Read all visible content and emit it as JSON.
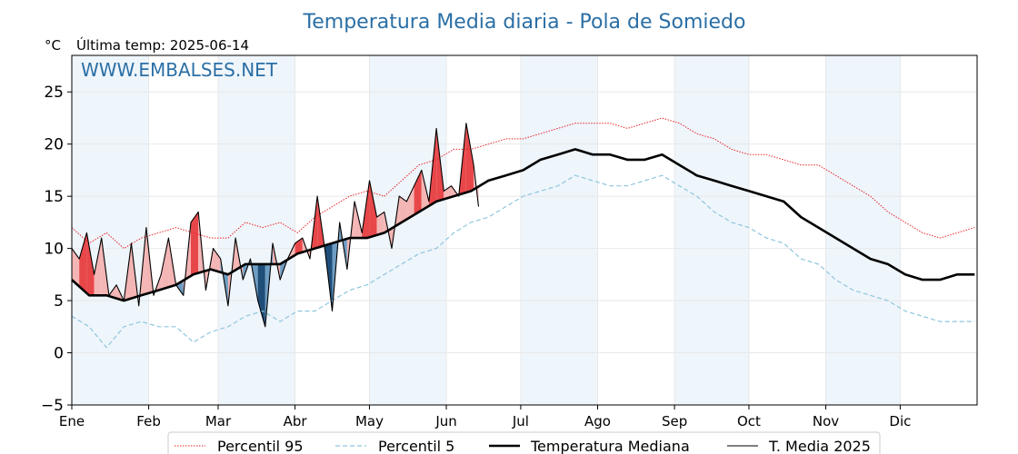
{
  "page": {
    "title": "Temperatura Media diaria - Pola de Somiedo",
    "unit": "°C",
    "last_update": "Última temp: 2025-06-14",
    "watermark": "WWW.EMBALSES.NET"
  },
  "colors": {
    "p95": "#e8262a",
    "p5": "#8fc6de",
    "median": "#000000",
    "current": "#000000",
    "above_fill": "#f4b5b5",
    "above_fill_strong": "#e8474a",
    "below_fill": "#6e9dc3",
    "below_fill_strong": "#1f4e79",
    "month_band": "#eef5fb",
    "title": "#2b6fa5"
  },
  "chart_data": {
    "type": "line",
    "title": "Temperatura Media diaria - Pola de Somiedo",
    "ylabel": "°C",
    "ylim": [
      -5,
      28.5
    ],
    "yticks": [
      -5,
      0,
      5,
      10,
      15,
      20,
      25
    ],
    "ytick_labels": [
      "−5",
      "0",
      "5",
      "10",
      "15",
      "20",
      "25"
    ],
    "xlim": [
      1,
      366
    ],
    "month_labels": [
      "Ene",
      "Feb",
      "Mar",
      "Abr",
      "May",
      "Jun",
      "Jul",
      "Ago",
      "Sep",
      "Oct",
      "Nov",
      "Dic"
    ],
    "month_starts": [
      1,
      32,
      60,
      91,
      121,
      152,
      182,
      213,
      244,
      274,
      305,
      335
    ],
    "shaded_months": [
      "Ene",
      "Mar",
      "May",
      "Jul",
      "Sep",
      "Nov"
    ],
    "grid": true,
    "legend_position": "bottom-center",
    "series": [
      {
        "name": "Percentil 95",
        "style": "dotted",
        "x": [
          1,
          8,
          15,
          22,
          29,
          36,
          43,
          50,
          57,
          64,
          71,
          78,
          85,
          92,
          99,
          106,
          113,
          120,
          127,
          134,
          141,
          148,
          155,
          162,
          169,
          176,
          183,
          190,
          197,
          204,
          211,
          218,
          225,
          232,
          239,
          246,
          253,
          260,
          267,
          274,
          281,
          288,
          295,
          302,
          309,
          316,
          323,
          330,
          337,
          344,
          351,
          358,
          365
        ],
        "values": [
          12.0,
          10.5,
          11.5,
          10.0,
          11.0,
          11.5,
          12.0,
          11.5,
          11.0,
          11.0,
          12.5,
          12.0,
          12.5,
          11.5,
          13.0,
          14.0,
          15.0,
          15.5,
          15.0,
          16.5,
          18.0,
          18.5,
          19.5,
          19.5,
          20.0,
          20.5,
          20.5,
          21.0,
          21.5,
          22.0,
          22.0,
          22.0,
          21.5,
          22.0,
          22.5,
          22.0,
          21.0,
          20.5,
          19.5,
          19.0,
          19.0,
          18.5,
          18.0,
          18.0,
          17.0,
          16.0,
          15.0,
          13.5,
          12.5,
          11.5,
          11.0,
          11.5,
          12.0
        ]
      },
      {
        "name": "Percentil 5",
        "style": "dashed",
        "x": [
          1,
          8,
          15,
          22,
          29,
          36,
          43,
          50,
          57,
          64,
          71,
          78,
          85,
          92,
          99,
          106,
          113,
          120,
          127,
          134,
          141,
          148,
          155,
          162,
          169,
          176,
          183,
          190,
          197,
          204,
          211,
          218,
          225,
          232,
          239,
          246,
          253,
          260,
          267,
          274,
          281,
          288,
          295,
          302,
          309,
          316,
          323,
          330,
          337,
          344,
          351,
          358,
          365
        ],
        "values": [
          3.5,
          2.5,
          0.5,
          2.5,
          3.0,
          2.5,
          2.5,
          1.0,
          2.0,
          2.5,
          3.5,
          4.0,
          3.0,
          4.0,
          4.0,
          5.0,
          6.0,
          6.5,
          7.5,
          8.5,
          9.5,
          10.0,
          11.5,
          12.5,
          13.0,
          14.0,
          15.0,
          15.5,
          16.0,
          17.0,
          16.5,
          16.0,
          16.0,
          16.5,
          17.0,
          16.0,
          15.0,
          13.5,
          12.5,
          12.0,
          11.0,
          10.5,
          9.0,
          8.5,
          7.0,
          6.0,
          5.5,
          5.0,
          4.0,
          3.5,
          3.0,
          3.0,
          3.0
        ]
      },
      {
        "name": "Temperatura Mediana",
        "style": "solid-thick",
        "x": [
          1,
          8,
          15,
          22,
          29,
          36,
          43,
          50,
          57,
          64,
          71,
          78,
          85,
          92,
          99,
          106,
          113,
          120,
          127,
          134,
          141,
          148,
          155,
          162,
          169,
          176,
          183,
          190,
          197,
          204,
          211,
          218,
          225,
          232,
          239,
          246,
          253,
          260,
          267,
          274,
          281,
          288,
          295,
          302,
          309,
          316,
          323,
          330,
          337,
          344,
          351,
          358,
          365
        ],
        "values": [
          7.0,
          5.5,
          5.5,
          5.0,
          5.5,
          6.0,
          6.5,
          7.5,
          8.0,
          7.5,
          8.5,
          8.5,
          8.5,
          9.5,
          10.0,
          10.5,
          11.0,
          11.0,
          11.5,
          12.5,
          13.5,
          14.5,
          15.0,
          15.5,
          16.5,
          17.0,
          17.5,
          18.5,
          19.0,
          19.5,
          19.0,
          19.0,
          18.5,
          18.5,
          19.0,
          18.0,
          17.0,
          16.5,
          16.0,
          15.5,
          15.0,
          14.5,
          13.0,
          12.0,
          11.0,
          10.0,
          9.0,
          8.5,
          7.5,
          7.0,
          7.0,
          7.5,
          7.5
        ]
      },
      {
        "name": "T. Media 2025",
        "style": "solid-thin",
        "x": [
          1,
          4,
          7,
          10,
          13,
          16,
          19,
          22,
          25,
          28,
          31,
          34,
          37,
          40,
          43,
          46,
          49,
          52,
          55,
          58,
          61,
          64,
          67,
          70,
          73,
          76,
          79,
          82,
          85,
          88,
          91,
          94,
          97,
          100,
          103,
          106,
          109,
          112,
          115,
          118,
          121,
          124,
          127,
          130,
          133,
          136,
          139,
          142,
          145,
          148,
          151,
          154,
          157,
          160,
          163,
          165
        ],
        "values": [
          10.0,
          9.0,
          11.5,
          7.5,
          11.0,
          5.5,
          6.5,
          5.0,
          10.5,
          4.5,
          12.0,
          5.5,
          7.5,
          11.0,
          6.5,
          5.5,
          12.5,
          13.5,
          6.0,
          10.0,
          9.0,
          4.5,
          11.0,
          7.0,
          9.0,
          5.0,
          2.5,
          10.5,
          7.0,
          9.0,
          10.5,
          11.0,
          9.0,
          15.0,
          10.0,
          4.0,
          12.5,
          8.0,
          14.5,
          11.5,
          16.5,
          13.0,
          13.5,
          10.0,
          15.0,
          14.5,
          16.0,
          17.5,
          14.5,
          21.5,
          15.5,
          16.0,
          15.0,
          22.0,
          18.0,
          14.0
        ]
      }
    ]
  }
}
